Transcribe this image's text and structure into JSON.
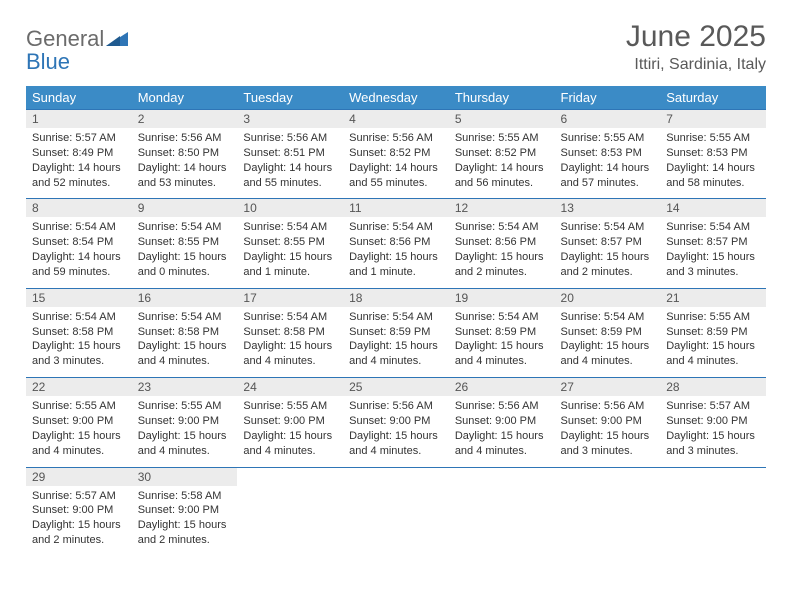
{
  "brand": {
    "name1": "General",
    "name2": "Blue"
  },
  "title": "June 2025",
  "location": "Ittiri, Sardinia, Italy",
  "colors": {
    "header_bg": "#3b8bc6",
    "header_text": "#ffffff",
    "border": "#2e75b6",
    "daynum_bg": "#ececec",
    "title_color": "#595959",
    "logo_gray": "#6b6b6b",
    "logo_blue": "#2e75b6"
  },
  "dayNames": [
    "Sunday",
    "Monday",
    "Tuesday",
    "Wednesday",
    "Thursday",
    "Friday",
    "Saturday"
  ],
  "weeks": [
    [
      {
        "n": "1",
        "sr": "5:57 AM",
        "ss": "8:49 PM",
        "dl": "14 hours and 52 minutes."
      },
      {
        "n": "2",
        "sr": "5:56 AM",
        "ss": "8:50 PM",
        "dl": "14 hours and 53 minutes."
      },
      {
        "n": "3",
        "sr": "5:56 AM",
        "ss": "8:51 PM",
        "dl": "14 hours and 55 minutes."
      },
      {
        "n": "4",
        "sr": "5:56 AM",
        "ss": "8:52 PM",
        "dl": "14 hours and 55 minutes."
      },
      {
        "n": "5",
        "sr": "5:55 AM",
        "ss": "8:52 PM",
        "dl": "14 hours and 56 minutes."
      },
      {
        "n": "6",
        "sr": "5:55 AM",
        "ss": "8:53 PM",
        "dl": "14 hours and 57 minutes."
      },
      {
        "n": "7",
        "sr": "5:55 AM",
        "ss": "8:53 PM",
        "dl": "14 hours and 58 minutes."
      }
    ],
    [
      {
        "n": "8",
        "sr": "5:54 AM",
        "ss": "8:54 PM",
        "dl": "14 hours and 59 minutes."
      },
      {
        "n": "9",
        "sr": "5:54 AM",
        "ss": "8:55 PM",
        "dl": "15 hours and 0 minutes."
      },
      {
        "n": "10",
        "sr": "5:54 AM",
        "ss": "8:55 PM",
        "dl": "15 hours and 1 minute."
      },
      {
        "n": "11",
        "sr": "5:54 AM",
        "ss": "8:56 PM",
        "dl": "15 hours and 1 minute."
      },
      {
        "n": "12",
        "sr": "5:54 AM",
        "ss": "8:56 PM",
        "dl": "15 hours and 2 minutes."
      },
      {
        "n": "13",
        "sr": "5:54 AM",
        "ss": "8:57 PM",
        "dl": "15 hours and 2 minutes."
      },
      {
        "n": "14",
        "sr": "5:54 AM",
        "ss": "8:57 PM",
        "dl": "15 hours and 3 minutes."
      }
    ],
    [
      {
        "n": "15",
        "sr": "5:54 AM",
        "ss": "8:58 PM",
        "dl": "15 hours and 3 minutes."
      },
      {
        "n": "16",
        "sr": "5:54 AM",
        "ss": "8:58 PM",
        "dl": "15 hours and 4 minutes."
      },
      {
        "n": "17",
        "sr": "5:54 AM",
        "ss": "8:58 PM",
        "dl": "15 hours and 4 minutes."
      },
      {
        "n": "18",
        "sr": "5:54 AM",
        "ss": "8:59 PM",
        "dl": "15 hours and 4 minutes."
      },
      {
        "n": "19",
        "sr": "5:54 AM",
        "ss": "8:59 PM",
        "dl": "15 hours and 4 minutes."
      },
      {
        "n": "20",
        "sr": "5:54 AM",
        "ss": "8:59 PM",
        "dl": "15 hours and 4 minutes."
      },
      {
        "n": "21",
        "sr": "5:55 AM",
        "ss": "8:59 PM",
        "dl": "15 hours and 4 minutes."
      }
    ],
    [
      {
        "n": "22",
        "sr": "5:55 AM",
        "ss": "9:00 PM",
        "dl": "15 hours and 4 minutes."
      },
      {
        "n": "23",
        "sr": "5:55 AM",
        "ss": "9:00 PM",
        "dl": "15 hours and 4 minutes."
      },
      {
        "n": "24",
        "sr": "5:55 AM",
        "ss": "9:00 PM",
        "dl": "15 hours and 4 minutes."
      },
      {
        "n": "25",
        "sr": "5:56 AM",
        "ss": "9:00 PM",
        "dl": "15 hours and 4 minutes."
      },
      {
        "n": "26",
        "sr": "5:56 AM",
        "ss": "9:00 PM",
        "dl": "15 hours and 4 minutes."
      },
      {
        "n": "27",
        "sr": "5:56 AM",
        "ss": "9:00 PM",
        "dl": "15 hours and 3 minutes."
      },
      {
        "n": "28",
        "sr": "5:57 AM",
        "ss": "9:00 PM",
        "dl": "15 hours and 3 minutes."
      }
    ],
    [
      {
        "n": "29",
        "sr": "5:57 AM",
        "ss": "9:00 PM",
        "dl": "15 hours and 2 minutes."
      },
      {
        "n": "30",
        "sr": "5:58 AM",
        "ss": "9:00 PM",
        "dl": "15 hours and 2 minutes."
      },
      null,
      null,
      null,
      null,
      null
    ]
  ],
  "labels": {
    "sunrise": "Sunrise: ",
    "sunset": "Sunset: ",
    "daylight": "Daylight: "
  }
}
